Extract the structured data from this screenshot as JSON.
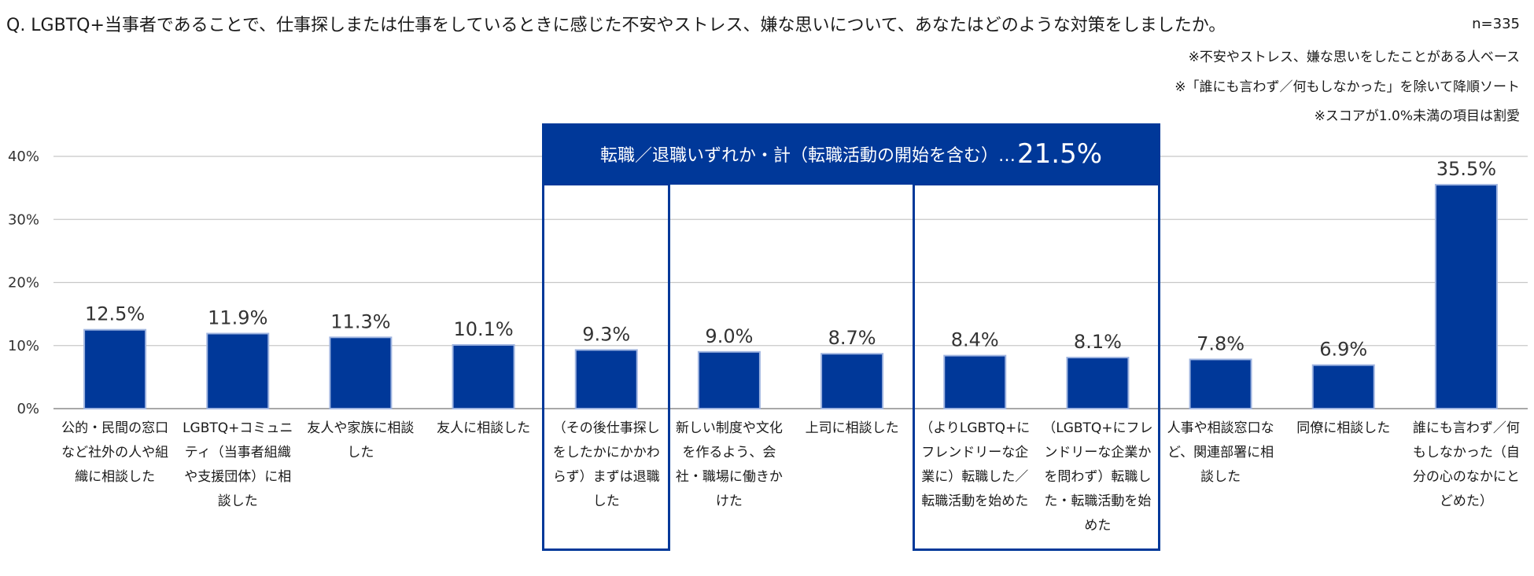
{
  "question": "Q. LGBTQ+当事者であることで、仕事探しまたは仕事をしているときに感じた不安やストレス、嫌な思いについて、あなたはどのような対策をしましたか。",
  "sample_size": "n=335",
  "notes": [
    "※不安やストレス、嫌な思いをしたことがある人ベース",
    "※「誰にも言わず／何もしなかった」を除いて降順ソート",
    "※スコアが1.0%未満の項目は割愛"
  ],
  "callout": {
    "text": "転職／退職いずれか・計（転職活動の開始を含む）…",
    "value": "21.5%"
  },
  "colors": {
    "bar": "#003899",
    "bar_edge": "#9fb4e0",
    "grid": "#c8c8c8",
    "axis": "#8c8c8c"
  },
  "chart_data": {
    "type": "bar",
    "title": "",
    "ylabel": "",
    "xlabel": "",
    "ylim": [
      0,
      40
    ],
    "yticks": [
      "0%",
      "10%",
      "20%",
      "30%",
      "40%"
    ],
    "categories": [
      "公的・民間の窓口など社外の人や組織に相談した",
      "LGBTQ+コミュニティ（当事者組織や支援団体）に相談した",
      "友人や家族に相談した",
      "友人に相談した",
      "（その後仕事探しをしたかにかかわらず）まずは退職した",
      "新しい制度や文化を作るよう、会社・職場に働きかけた",
      "上司に相談した",
      "（よりLGBTQ+にフレンドリーな企業に）転職した／転職活動を始めた",
      "（LGBTQ+にフレンドリーな企業かを問わず）転職した・転職活動を始めた",
      "人事や相談窓口など、関連部署に相談した",
      "同僚に相談した",
      "誰にも言わず／何もしなかった（自分の心のなかにとどめた）"
    ],
    "values": [
      12.5,
      11.9,
      11.3,
      10.1,
      9.3,
      9.0,
      8.7,
      8.4,
      8.1,
      7.8,
      6.9,
      35.5
    ],
    "value_labels": [
      "12.5%",
      "11.9%",
      "11.3%",
      "10.1%",
      "9.3%",
      "9.0%",
      "8.7%",
      "8.4%",
      "8.1%",
      "7.8%",
      "6.9%",
      "35.5%"
    ]
  }
}
